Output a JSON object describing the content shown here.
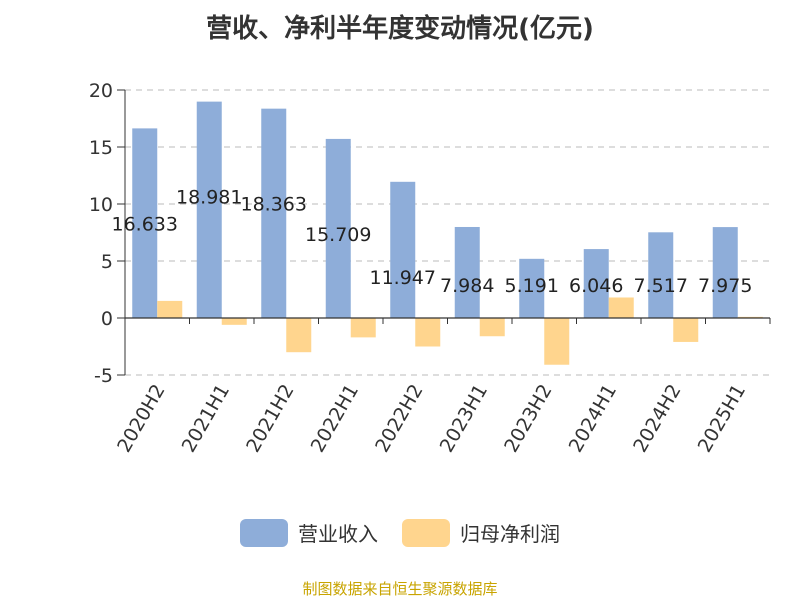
{
  "title": "营收、净利半年度变动情况(亿元)",
  "source": "制图数据来自恒生聚源数据库",
  "chart_data": {
    "type": "bar",
    "categories": [
      "2020H2",
      "2021H1",
      "2021H2",
      "2022H1",
      "2022H2",
      "2023H1",
      "2023H2",
      "2024H1",
      "2024H2",
      "2025H1"
    ],
    "series": [
      {
        "name": "营业收入",
        "color": "#8eadd9",
        "values": [
          16.633,
          18.981,
          18.363,
          15.709,
          11.947,
          7.984,
          5.191,
          6.046,
          7.517,
          7.975
        ],
        "labels": [
          "16.633",
          "18.981",
          "18.363",
          "15.709",
          "11.947",
          "7.984",
          "5.191",
          "6.046",
          "7.517",
          "7.975"
        ]
      },
      {
        "name": "归母净利润",
        "color": "#ffd58e",
        "values": [
          1.5,
          -0.6,
          -3.0,
          -1.7,
          -2.5,
          -1.6,
          -4.1,
          1.8,
          -2.1,
          0.1
        ]
      }
    ],
    "yticks": [
      -5,
      0,
      5,
      10,
      15,
      20
    ],
    "ylim": [
      -5,
      20
    ],
    "grid": true,
    "legend_position": "bottom"
  }
}
